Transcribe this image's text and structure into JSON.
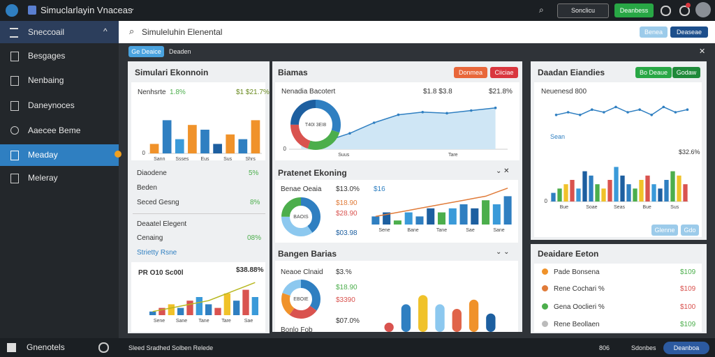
{
  "topbar": {
    "title": "Simuclarlayin Vnaceas",
    "select": "Sonclicu",
    "primary_button": "Deanbess"
  },
  "sidebar": {
    "items": [
      "Sneccoail",
      "Besgages",
      "Nenbaing",
      "Daneynoces",
      "Aaecee Beme",
      "Meaday",
      "Meleray"
    ],
    "footer": "Gnenotels"
  },
  "toolbar": {
    "search": "Simuleluhin Elenental",
    "buttons": [
      "Benea",
      "Deaseae"
    ]
  },
  "tabs": {
    "active": "Ge Deaice",
    "other": "Deaden"
  },
  "left_panel": {
    "title": "Simulari Ekonnoin",
    "card_header": "Nenhsrte",
    "card_change": "1.8%",
    "card_value": "$1 $21.7%",
    "rows": [
      [
        "Diaodene",
        "5%"
      ],
      [
        "Beden",
        ""
      ],
      [
        "Seced Gesng",
        "8%"
      ]
    ],
    "section": "Deaatel Elegent",
    "section_rows": [
      [
        "Cenaing",
        "08%"
      ]
    ],
    "link": "Strietty Rsne",
    "chart_title": "PR O10 Sc00l",
    "chart_value": "$38.88%"
  },
  "center_panel": {
    "section1": {
      "title": "Biamas",
      "buttons": [
        "Donmea",
        "Ciiciae"
      ],
      "label": "Nenadia Bacotert",
      "value1": "$1.8 $3.8",
      "value2": "$21.8%"
    },
    "section2": {
      "title": "Pratenet Ekoning",
      "label": "Benae Oeaia",
      "values": [
        "$13.0%",
        "$18.90",
        "$28.90",
        "$03.98"
      ],
      "tag": "$16"
    },
    "section3": {
      "title": "Bangen Barias",
      "label": "Neaoe Clnaid",
      "values": [
        "$3.%",
        "$18.90",
        "$3390",
        "$07.0%"
      ],
      "foot": "Bonlo Fob"
    }
  },
  "right_panel": {
    "title": "Daadan Eiandies",
    "buttons": [
      "Bo Deaue",
      "Godaw"
    ],
    "label": "Neuenesd 800",
    "legend": "Sean",
    "value": "$32.6%",
    "bottom_buttons": [
      "Glenne",
      "Gdo"
    ],
    "list_title": "Deaidare Eeton",
    "list": [
      [
        "Pade Bonsena",
        "$109"
      ],
      [
        "Rene Cochari %",
        "$109"
      ],
      [
        "Gena Ooclieri %",
        "$100"
      ],
      [
        "Rene Beollaen",
        "$109"
      ]
    ]
  },
  "statusbar": {
    "text": "Sleed Sradhed Solben Relede",
    "items": [
      "806",
      "Sdonbes"
    ],
    "button": "Deanboa"
  },
  "charts": [
    {
      "type": "bar",
      "ylim": [
        0,
        10
      ],
      "yticks": [
        0
      ],
      "values": [
        2,
        7,
        3,
        6,
        5,
        2,
        4,
        3,
        7
      ],
      "colors": [
        "#f0922a",
        "#2f7fc1",
        "#3a9ad9",
        "#f0922a",
        "#2f7fc1",
        "#1d5fa0",
        "#f0922a",
        "#2f7fc1",
        "#f0922a"
      ],
      "x_labels": [
        "Sann",
        "Ssses",
        "Eus",
        "Sus",
        "Shrs"
      ]
    },
    {
      "type": "bar",
      "ylim": [
        0,
        10
      ],
      "values": [
        1,
        2,
        3,
        2,
        4,
        5,
        3,
        2,
        6,
        4,
        7,
        5
      ],
      "colors": [
        "#2f7fc1",
        "#d9534f",
        "#f0c22a",
        "#2f7fc1",
        "#d9534f",
        "#3a9ad9"
      ],
      "line": [
        1,
        1.5,
        2,
        2.5,
        3,
        3.5,
        4,
        5,
        6,
        7,
        8,
        9
      ],
      "line_color": "#b8b820",
      "x_labels": [
        "Sene",
        "Sane",
        "Tane",
        "Tare",
        "Sae"
      ]
    },
    {
      "type": "donut",
      "values": [
        30,
        25,
        20,
        25
      ],
      "colors": [
        "#2f7fc1",
        "#4cae4c",
        "#d9534f",
        "#1d5fa0"
      ],
      "center_label": "T40I 3EI8"
    },
    {
      "type": "line",
      "ylim": [
        0,
        10
      ],
      "yticks": [
        0
      ],
      "values": [
        1,
        1.5,
        3,
        5,
        6.5,
        7,
        6.8,
        7.3,
        7.8
      ],
      "color": "#2f7fc1",
      "area_color": "#cfe6f5",
      "x_labels": [
        "Suus",
        "Tare"
      ]
    },
    {
      "type": "donut",
      "values": [
        40,
        35,
        25
      ],
      "colors": [
        "#2f7fc1",
        "#8cc8ef",
        "#4cae4c"
      ],
      "center_label": "BAOIS"
    },
    {
      "type": "bar",
      "ylim": [
        0,
        10
      ],
      "values": [
        2,
        3,
        1,
        3,
        2,
        4,
        3,
        4,
        5,
        4,
        6,
        5,
        7
      ],
      "colors": [
        "#2f7fc1",
        "#1d5fa0",
        "#4cae4c",
        "#3a9ad9"
      ],
      "line": [
        2,
        2.5,
        3,
        3.5,
        4,
        4.5,
        5,
        5.5,
        6,
        6.5,
        7,
        8,
        9
      ],
      "line_color": "#e07b39",
      "x_labels": [
        "Sene",
        "Bane",
        "Tane",
        "Sae",
        "Sane"
      ]
    },
    {
      "type": "donut",
      "values": [
        35,
        25,
        20,
        20
      ],
      "colors": [
        "#2f7fc1",
        "#d9534f",
        "#f0922a",
        "#8cc8ef"
      ],
      "center_label": "EBOIE"
    },
    {
      "type": "bar",
      "ylim": [
        0,
        10
      ],
      "values": [
        2,
        6,
        8,
        6,
        5,
        7,
        4
      ],
      "colors": [
        "#d9534f",
        "#2f7fc1",
        "#f0c22a",
        "#8cc8ef",
        "#e0644a",
        "#f0922a",
        "#1d5fa0"
      ],
      "rounded": true
    },
    {
      "type": "line",
      "ylim": [
        0,
        10
      ],
      "values": [
        4,
        5,
        4,
        6,
        5,
        7,
        5,
        6,
        4,
        7,
        5,
        6
      ],
      "color": "#2f7fc1"
    },
    {
      "type": "bar",
      "ylim": [
        0,
        10
      ],
      "yticks": [
        0
      ],
      "values": [
        2,
        3,
        4,
        5,
        3,
        7,
        6,
        4,
        3,
        5,
        8,
        6,
        4,
        3,
        5,
        6,
        4,
        3,
        5,
        7,
        6,
        4
      ],
      "colors": [
        "#2f7fc1",
        "#4cae4c",
        "#f0c22a",
        "#d9534f",
        "#3a9ad9",
        "#1d5fa0"
      ],
      "x_labels": [
        "Bue",
        "Soae",
        "Seas",
        "Bue",
        "Sus"
      ]
    }
  ]
}
